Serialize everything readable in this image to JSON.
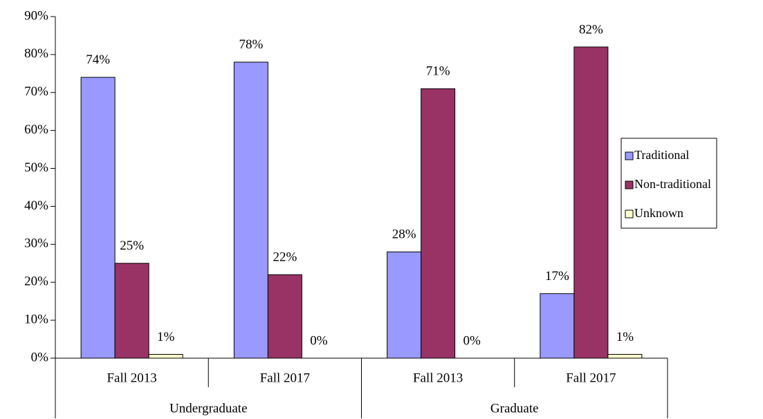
{
  "chart_data": {
    "type": "bar",
    "categories": [
      "Fall 2013",
      "Fall 2017",
      "Fall 2013",
      "Fall 2017"
    ],
    "groups": [
      "Undergraduate",
      "Graduate"
    ],
    "series": [
      {
        "name": "Traditional",
        "color": "#9999ff",
        "values": [
          74,
          78,
          28,
          17
        ],
        "value_labels": [
          "74%",
          "78%",
          "28%",
          "17%"
        ]
      },
      {
        "name": "Non-traditional",
        "color": "#993366",
        "values": [
          25,
          22,
          71,
          82
        ],
        "value_labels": [
          "25%",
          "22%",
          "71%",
          "82%"
        ]
      },
      {
        "name": "Unknown",
        "color": "#ffffcc",
        "values": [
          1,
          0,
          0,
          1
        ],
        "value_labels": [
          "1%",
          "0%",
          "0%",
          "1%"
        ]
      }
    ],
    "ylim": [
      0,
      90
    ],
    "yticks": [
      {
        "value": 0,
        "label": "0%"
      },
      {
        "value": 10,
        "label": "10%"
      },
      {
        "value": 20,
        "label": "20%"
      },
      {
        "value": 30,
        "label": "30%"
      },
      {
        "value": 40,
        "label": "40%"
      },
      {
        "value": 50,
        "label": "50%"
      },
      {
        "value": 60,
        "label": "60%"
      },
      {
        "value": 70,
        "label": "70%"
      },
      {
        "value": 80,
        "label": "80%"
      },
      {
        "value": 90,
        "label": "90%"
      }
    ],
    "legend": "right"
  }
}
